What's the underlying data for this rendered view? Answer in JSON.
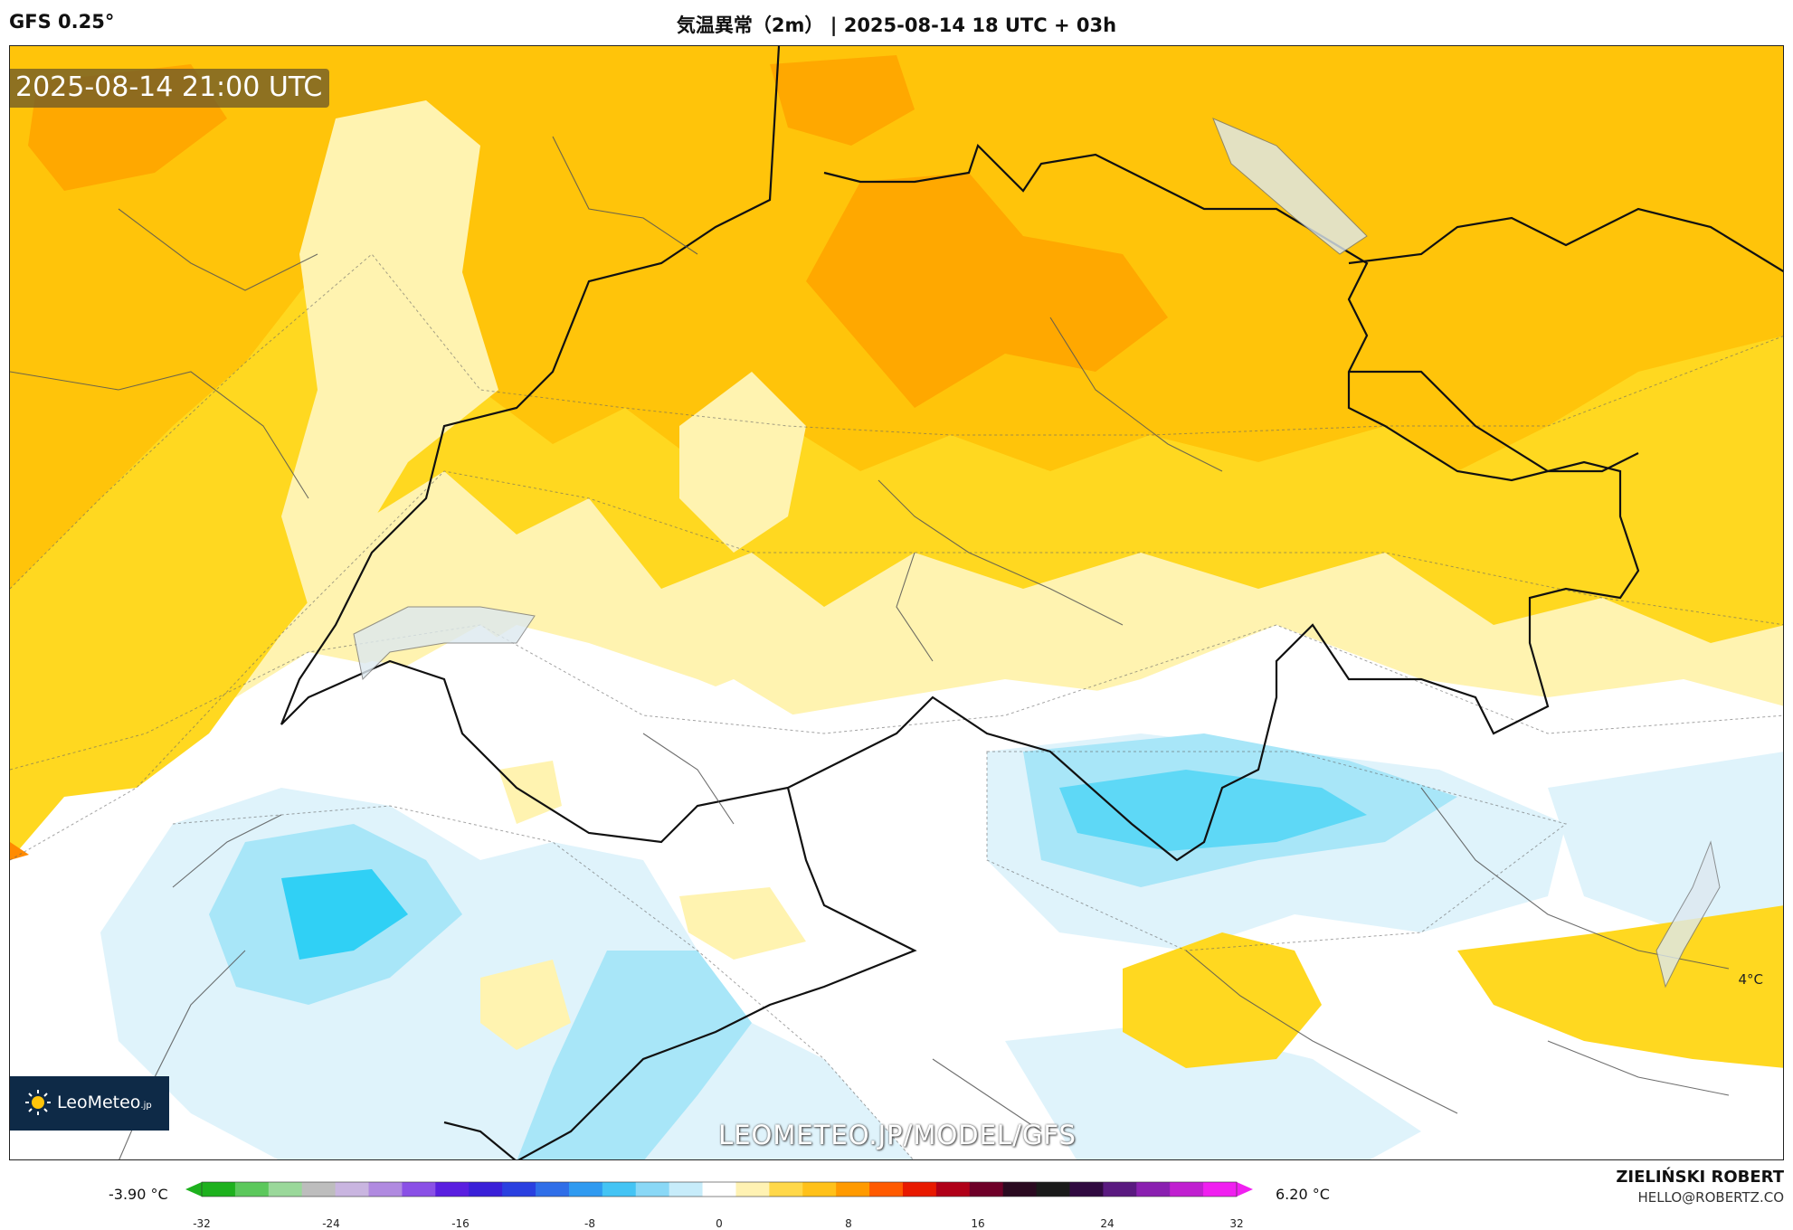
{
  "header": {
    "model": "GFS 0.25°",
    "title": "気温異常（2m） | 2025-08-14 18 UTC + 03h"
  },
  "map": {
    "valid_time": "2025-08-14 21:00 UTC",
    "point_label": "4°C",
    "watermark": "LEOMETEO.JP/MODEL/GFS",
    "logo_text": "LeoMeteo",
    "logo_suffix": ".jp"
  },
  "colorbar": {
    "min_value": "-3.90 °C",
    "max_value": "6.20 °C",
    "range": [
      -32,
      32
    ],
    "ticks": [
      -32,
      -24,
      -16,
      -8,
      0,
      8,
      16,
      24,
      32
    ],
    "colors": [
      "#1eb11e",
      "#5cc85c",
      "#9ad89a",
      "#bdbdbd",
      "#c9b5e0",
      "#b08ae0",
      "#8a50e6",
      "#5a1fe0",
      "#3a20d8",
      "#2a40e0",
      "#2f6ee8",
      "#2f9af0",
      "#44c4f4",
      "#8ad8f6",
      "#c7ecfa",
      "#ffffff",
      "#fff2b3",
      "#ffd84a",
      "#ffc11a",
      "#ff9a00",
      "#ff5a00",
      "#e81a00",
      "#b00018",
      "#6e0028",
      "#2a0a20",
      "#1a1a1a",
      "#300a40",
      "#5a1a80",
      "#8a20b0",
      "#c020d0",
      "#f020f0"
    ]
  },
  "footer": {
    "author": "ZIELIŃSKI ROBERT",
    "email": "HELLO@ROBERTZ.CO"
  }
}
